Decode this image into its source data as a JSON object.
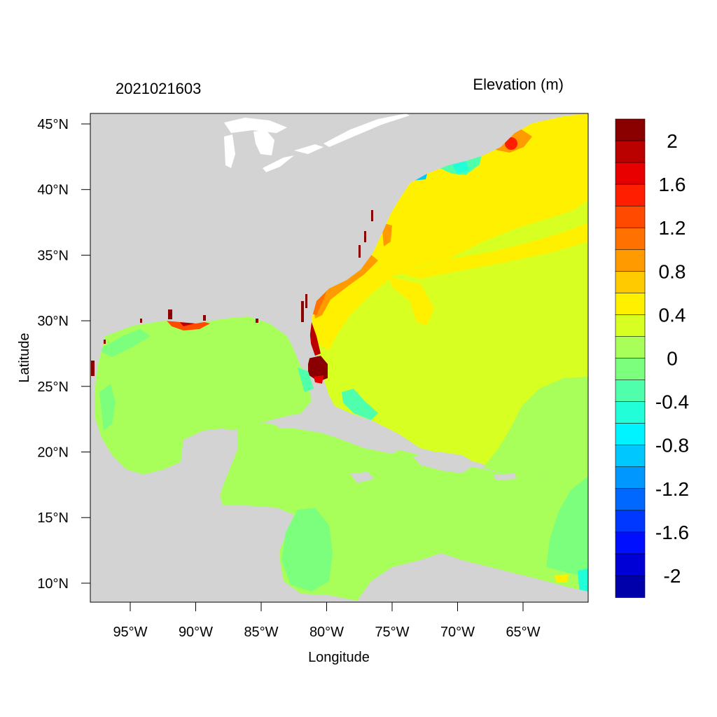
{
  "header": {
    "timestamp": "2021021603",
    "variable": "Elevation (m)"
  },
  "axes": {
    "x_label": "Longitude",
    "y_label": "Latitude",
    "x_ticks": [
      "95°W",
      "90°W",
      "85°W",
      "80°W",
      "75°W",
      "70°W",
      "65°W"
    ],
    "y_ticks": [
      "45°N",
      "40°N",
      "35°N",
      "30°N",
      "25°N",
      "20°N",
      "15°N",
      "10°N"
    ],
    "lon_range": [
      -98,
      -60
    ],
    "lat_range": [
      8.5,
      46
    ]
  },
  "colorbar": {
    "labels": [
      "2",
      "1.6",
      "1.2",
      "0.8",
      "0.4",
      "0",
      "-0.4",
      "-0.8",
      "-1.2",
      "-1.6",
      "-2"
    ],
    "colors": [
      "#8a0000",
      "#bb0000",
      "#e80000",
      "#ff1e00",
      "#ff4a00",
      "#ff7100",
      "#ff9b00",
      "#ffca00",
      "#fff000",
      "#d8ff22",
      "#a8ff5a",
      "#7cff7c",
      "#50ffac",
      "#22ffd8",
      "#00f4ff",
      "#00c8ff",
      "#0098ff",
      "#0068ff",
      "#0038ff",
      "#0010ff",
      "#0000d6",
      "#0000aa"
    ]
  },
  "colors": {
    "land": "#d3d3d3",
    "gulf_caribbean": "#a8ff5a",
    "atlantic": "#d8ff22",
    "shelf_high": "#fff000",
    "surge": "#8a0000"
  }
}
